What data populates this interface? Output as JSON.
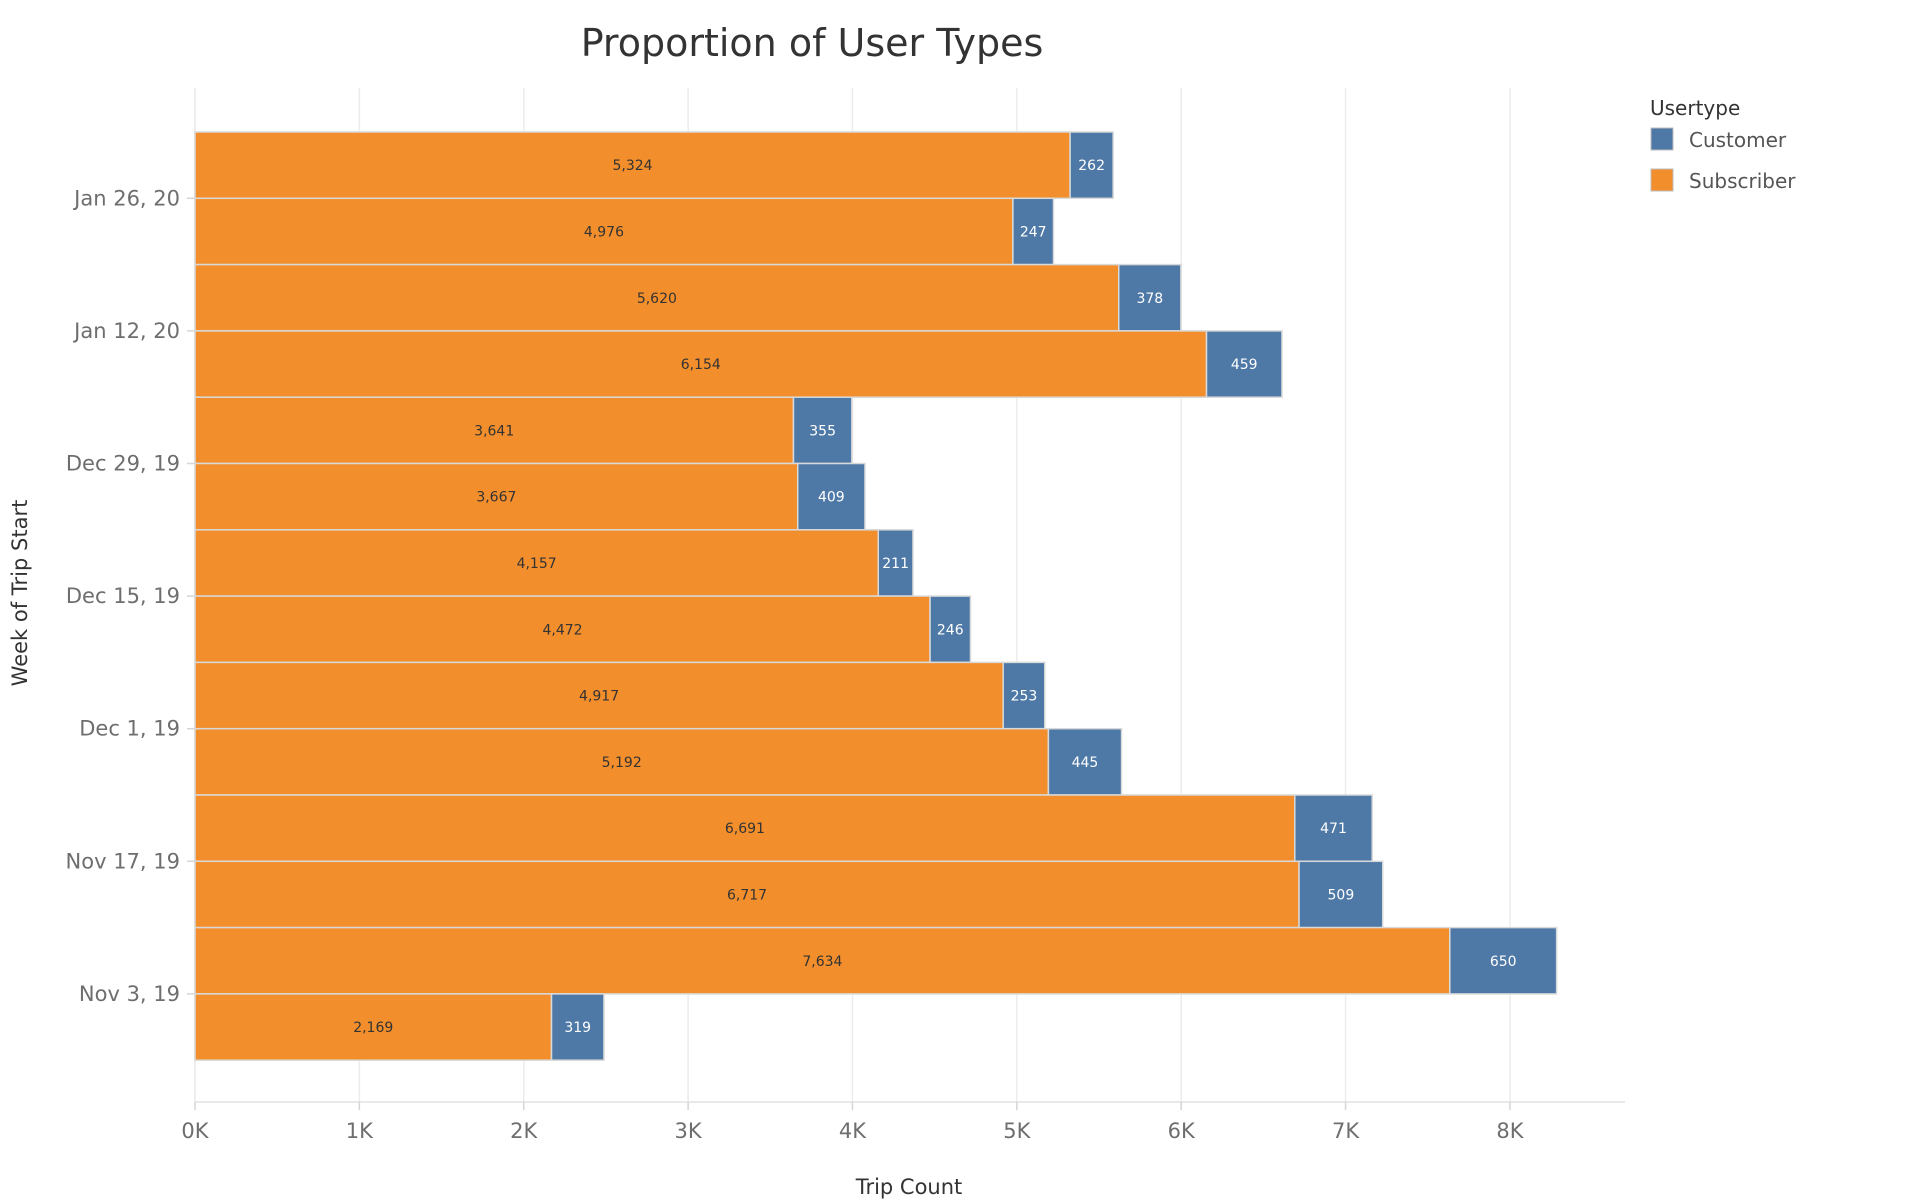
{
  "chart_data": {
    "type": "bar",
    "orientation": "horizontal",
    "stacked": true,
    "title": "Proportion of User Types",
    "xlabel": "Trip Count",
    "ylabel": "Week of Trip Start",
    "xlim": [
      0,
      8700
    ],
    "x_ticks": [
      {
        "value": 0,
        "label": "0K"
      },
      {
        "value": 1000,
        "label": "1K"
      },
      {
        "value": 2000,
        "label": "2K"
      },
      {
        "value": 3000,
        "label": "3K"
      },
      {
        "value": 4000,
        "label": "4K"
      },
      {
        "value": 5000,
        "label": "5K"
      },
      {
        "value": 6000,
        "label": "6K"
      },
      {
        "value": 7000,
        "label": "7K"
      },
      {
        "value": 8000,
        "label": "8K"
      }
    ],
    "y_tick_labels": [
      "Jan 26, 20",
      "Jan 12, 20",
      "Dec 29, 19",
      "Dec 15, 19",
      "Dec 1, 19",
      "Nov 17, 19",
      "Nov 3, 19"
    ],
    "grid": true,
    "legend": {
      "title": "Usertype",
      "placement": "top-right"
    },
    "series": [
      {
        "name": "Subscriber",
        "color": "#f28e2b",
        "values": [
          5324,
          4976,
          5620,
          6154,
          3641,
          3667,
          4157,
          4472,
          4917,
          5192,
          6691,
          6717,
          7634,
          2169
        ],
        "labels": [
          "5,324",
          "4,976",
          "5,620",
          "6,154",
          "3,641",
          "3,667",
          "4,157",
          "4,472",
          "4,917",
          "5,192",
          "6,691",
          "6,717",
          "7,634",
          "2,169"
        ]
      },
      {
        "name": "Customer",
        "color": "#4e79a7",
        "values": [
          262,
          247,
          378,
          459,
          355,
          409,
          211,
          246,
          253,
          445,
          471,
          509,
          650,
          319
        ],
        "labels": [
          "262",
          "247",
          "378",
          "459",
          "355",
          "409",
          "211",
          "246",
          "253",
          "445",
          "471",
          "509",
          "650",
          "319"
        ]
      }
    ]
  }
}
